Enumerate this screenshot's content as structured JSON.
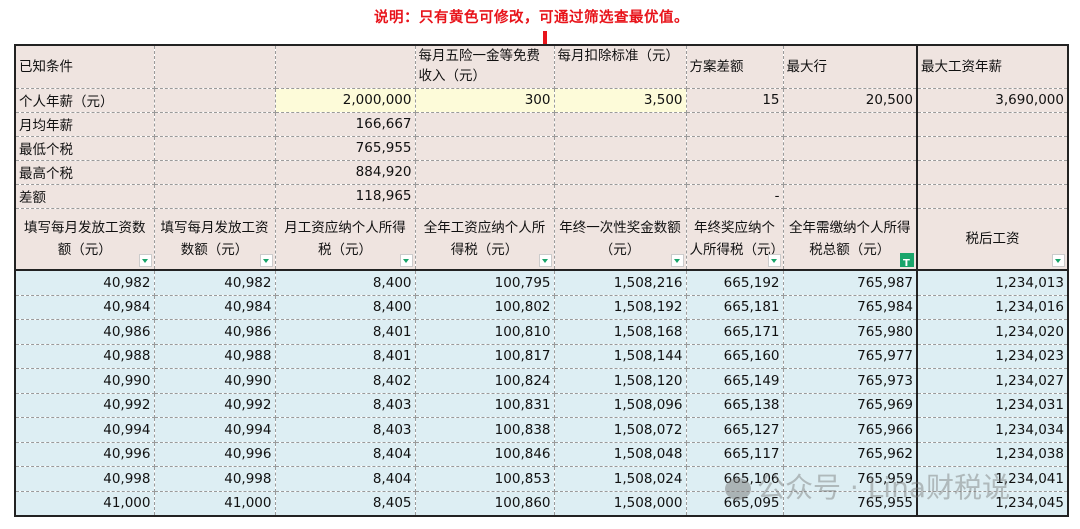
{
  "note": "说明：只有黄色可修改，可通过筛选查最优值。",
  "top_header": {
    "known": "已知条件",
    "insurance": "每月五险一金等免费收入（元）",
    "deduction": "每月扣除标准（元）",
    "plan_diff": "方案差额",
    "max_row": "最大行",
    "max_salary": "最大工资年薪"
  },
  "inputs": {
    "annual_salary_label": "个人年薪（元）",
    "annual_salary": "2,000,000",
    "insurance": "300",
    "deduction": "3,500",
    "plan_diff": "15",
    "max_row": "20,500",
    "max_salary": "3,690,000"
  },
  "summary": [
    {
      "label": "月均年薪",
      "value": "166,667",
      "extra": ""
    },
    {
      "label": "最低个税",
      "value": "765,955",
      "extra": ""
    },
    {
      "label": "最高个税",
      "value": "884,920",
      "extra": ""
    },
    {
      "label": "差额",
      "value": "118,965",
      "extra": "-"
    }
  ],
  "columns": [
    "填写每月发放工资数额（元）",
    "填写每月发放工资数额（元）",
    "月工资应纳个人所得税（元）",
    "全年工资应纳个人所得税（元）",
    "年终一次性奖金数额（元）",
    "年终奖应纳个人所得税（元）",
    "全年需缴纳个人所得税总额（元）",
    "税后工资"
  ],
  "filter_active_column": 6,
  "rows": [
    [
      "40,982",
      "40,982",
      "8,400",
      "100,795",
      "1,508,216",
      "665,192",
      "765,987",
      "1,234,013"
    ],
    [
      "40,984",
      "40,984",
      "8,400",
      "100,802",
      "1,508,192",
      "665,181",
      "765,984",
      "1,234,016"
    ],
    [
      "40,986",
      "40,986",
      "8,401",
      "100,810",
      "1,508,168",
      "665,171",
      "765,980",
      "1,234,020"
    ],
    [
      "40,988",
      "40,988",
      "8,401",
      "100,817",
      "1,508,144",
      "665,160",
      "765,977",
      "1,234,023"
    ],
    [
      "40,990",
      "40,990",
      "8,402",
      "100,824",
      "1,508,120",
      "665,149",
      "765,973",
      "1,234,027"
    ],
    [
      "40,992",
      "40,992",
      "8,403",
      "100,831",
      "1,508,096",
      "665,138",
      "765,969",
      "1,234,031"
    ],
    [
      "40,994",
      "40,994",
      "8,403",
      "100,838",
      "1,508,072",
      "665,127",
      "765,966",
      "1,234,034"
    ],
    [
      "40,996",
      "40,996",
      "8,404",
      "100,846",
      "1,508,048",
      "665,117",
      "765,962",
      "1,234,038"
    ],
    [
      "40,998",
      "40,998",
      "8,404",
      "100,853",
      "1,508,024",
      "665,106",
      "765,959",
      "1,234,041"
    ],
    [
      "41,000",
      "41,000",
      "8,405",
      "100,860",
      "1,508,000",
      "665,095",
      "765,955",
      "1,234,045"
    ]
  ],
  "watermark": "公众号 · Lina财税说",
  "colors": {
    "accent_red": "#e8141b",
    "editable_yellow": "#fdfbd9",
    "header_bg": "#efe4e0",
    "data_bg": "#ddeef3",
    "filter_green": "#1aa56b"
  }
}
